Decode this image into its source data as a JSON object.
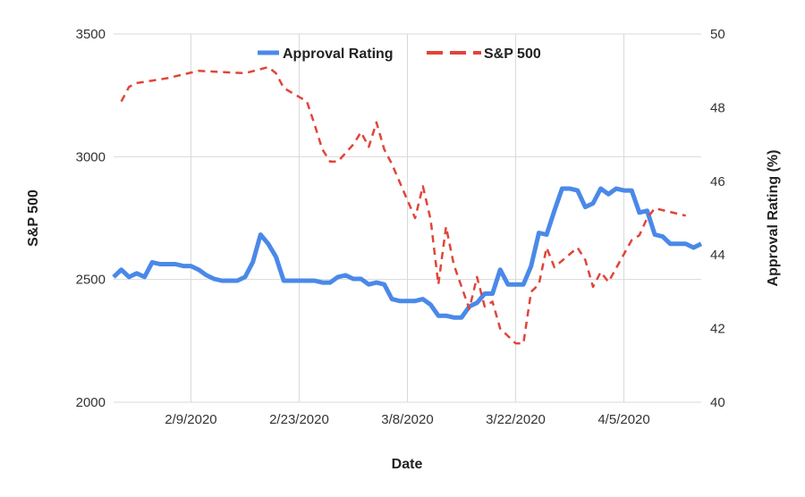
{
  "chart_data": {
    "type": "line",
    "title": "",
    "xlabel": "Date",
    "ylabel_left": "S&P 500",
    "ylabel_right": "Approval Rating (%)",
    "ylim_left": [
      2000,
      3500
    ],
    "ylim_right": [
      40,
      50
    ],
    "yticks_left": [
      "3500",
      "3000",
      "2500",
      "2000"
    ],
    "yticks_right": [
      "50",
      "48",
      "46",
      "44",
      "42",
      "40"
    ],
    "xticks": [
      "2/9/2020",
      "2/23/2020",
      "3/8/2020",
      "3/22/2020",
      "4/5/2020"
    ],
    "xlim": [
      "2020-01-30",
      "2020-04-15"
    ],
    "grid": true,
    "legend_position": "top",
    "colors": {
      "approval": "#4a89e8",
      "sp500": "#e0453a",
      "grid": "#d9d9d9"
    },
    "series": [
      {
        "name": "Approval Rating",
        "axis": "right",
        "style": "solid",
        "x": [
          "2020-01-30",
          "2020-01-31",
          "2020-02-01",
          "2020-02-02",
          "2020-02-03",
          "2020-02-04",
          "2020-02-05",
          "2020-02-06",
          "2020-02-07",
          "2020-02-08",
          "2020-02-09",
          "2020-02-10",
          "2020-02-11",
          "2020-02-12",
          "2020-02-13",
          "2020-02-14",
          "2020-02-15",
          "2020-02-16",
          "2020-02-17",
          "2020-02-18",
          "2020-02-19",
          "2020-02-20",
          "2020-02-21",
          "2020-02-22",
          "2020-02-23",
          "2020-02-24",
          "2020-02-25",
          "2020-02-26",
          "2020-02-27",
          "2020-02-28",
          "2020-02-29",
          "2020-03-01",
          "2020-03-02",
          "2020-03-03",
          "2020-03-04",
          "2020-03-05",
          "2020-03-06",
          "2020-03-07",
          "2020-03-08",
          "2020-03-09",
          "2020-03-10",
          "2020-03-11",
          "2020-03-12",
          "2020-03-13",
          "2020-03-14",
          "2020-03-15",
          "2020-03-16",
          "2020-03-17",
          "2020-03-18",
          "2020-03-19",
          "2020-03-20",
          "2020-03-21",
          "2020-03-22",
          "2020-03-23",
          "2020-03-24",
          "2020-03-25",
          "2020-03-26",
          "2020-03-27",
          "2020-03-28",
          "2020-03-29",
          "2020-03-30",
          "2020-03-31",
          "2020-04-01",
          "2020-04-02",
          "2020-04-03",
          "2020-04-04",
          "2020-04-05",
          "2020-04-06",
          "2020-04-07",
          "2020-04-08",
          "2020-04-09",
          "2020-04-10",
          "2020-04-11",
          "2020-04-12",
          "2020-04-13",
          "2020-04-14",
          "2020-04-15"
        ],
        "values": [
          43.4,
          43.6,
          43.4,
          43.5,
          43.4,
          43.8,
          43.75,
          43.75,
          43.75,
          43.7,
          43.7,
          43.6,
          43.45,
          43.35,
          43.3,
          43.3,
          43.3,
          43.4,
          43.8,
          44.55,
          44.3,
          43.95,
          43.3,
          43.3,
          43.3,
          43.3,
          43.3,
          43.25,
          43.25,
          43.4,
          43.45,
          43.35,
          43.35,
          43.2,
          43.25,
          43.2,
          42.8,
          42.75,
          42.75,
          42.75,
          42.8,
          42.65,
          42.35,
          42.35,
          42.3,
          42.3,
          42.6,
          42.7,
          42.95,
          42.95,
          43.6,
          43.2,
          43.2,
          43.2,
          43.7,
          44.6,
          44.55,
          45.2,
          45.8,
          45.8,
          45.75,
          45.3,
          45.4,
          45.8,
          45.65,
          45.8,
          45.75,
          45.75,
          45.15,
          45.2,
          44.55,
          44.5,
          44.3,
          44.3,
          44.3,
          44.2,
          44.3
        ]
      },
      {
        "name": "S&P 500",
        "axis": "left",
        "style": "dashed",
        "x": [
          "2020-01-31",
          "2020-02-01",
          "2020-02-02",
          "2020-02-03",
          "2020-02-06",
          "2020-02-10",
          "2020-02-13",
          "2020-02-16",
          "2020-02-19",
          "2020-02-20",
          "2020-02-21",
          "2020-02-24",
          "2020-02-25",
          "2020-02-26",
          "2020-02-27",
          "2020-02-28",
          "2020-03-01",
          "2020-03-02",
          "2020-03-03",
          "2020-03-04",
          "2020-03-05",
          "2020-03-06",
          "2020-03-09",
          "2020-03-10",
          "2020-03-11",
          "2020-03-12",
          "2020-03-13",
          "2020-03-14",
          "2020-03-16",
          "2020-03-17",
          "2020-03-18",
          "2020-03-19",
          "2020-03-20",
          "2020-03-22",
          "2020-03-23",
          "2020-03-24",
          "2020-03-25",
          "2020-03-26",
          "2020-03-27",
          "2020-03-30",
          "2020-03-31",
          "2020-04-01",
          "2020-04-02",
          "2020-04-03",
          "2020-04-06",
          "2020-04-07",
          "2020-04-08",
          "2020-04-09",
          "2020-04-13"
        ],
        "values": [
          3225,
          3285,
          3300,
          3305,
          3320,
          3350,
          3345,
          3340,
          3365,
          3340,
          3280,
          3225,
          3130,
          3030,
          2980,
          2980,
          3050,
          3100,
          3040,
          3140,
          3030,
          2970,
          2750,
          2880,
          2745,
          2480,
          2715,
          2560,
          2380,
          2510,
          2390,
          2410,
          2300,
          2240,
          2240,
          2450,
          2480,
          2630,
          2550,
          2630,
          2580,
          2470,
          2530,
          2490,
          2660,
          2680,
          2750,
          2790,
          2760
        ]
      }
    ]
  }
}
